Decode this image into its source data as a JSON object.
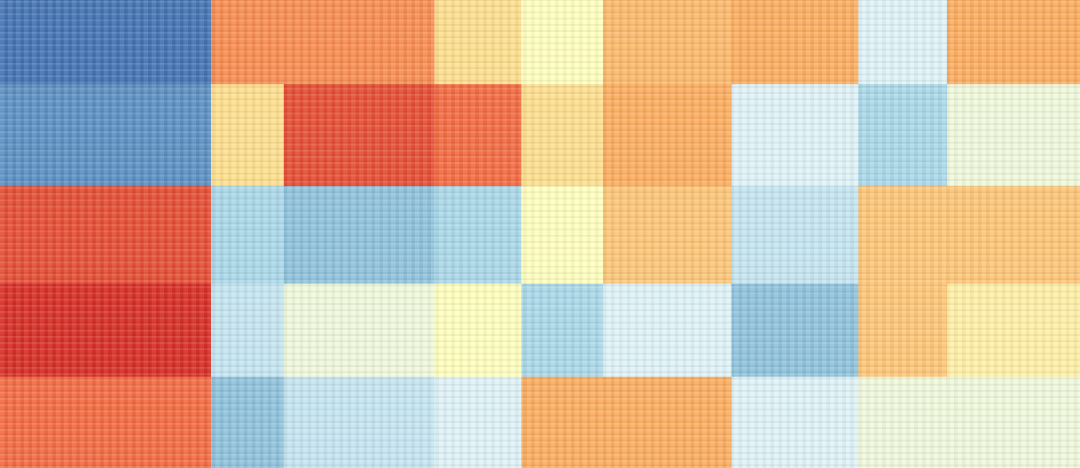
{
  "chart_data": {
    "type": "heatmap",
    "title": "",
    "xlabel": "",
    "ylabel": "",
    "value_range": [
      -1,
      1
    ],
    "colormap": [
      "#313695",
      "#4575b4",
      "#74add1",
      "#abd9e9",
      "#e0f3f8",
      "#ffffbf",
      "#fee090",
      "#fdae61",
      "#f46d43",
      "#d73027",
      "#a50026"
    ],
    "row_clusters": 5,
    "column_clusters": 9,
    "values": [
      [
        -0.8,
        0.5,
        0.5,
        0.2,
        0.0,
        0.35,
        0.4,
        -0.2,
        0.4
      ],
      [
        -0.7,
        0.2,
        0.7,
        0.6,
        0.2,
        0.4,
        -0.2,
        -0.4,
        -0.1
      ],
      [
        0.7,
        -0.4,
        -0.5,
        -0.4,
        0.0,
        0.3,
        -0.3,
        0.3,
        0.3
      ],
      [
        0.8,
        -0.3,
        -0.1,
        0.0,
        -0.4,
        -0.2,
        -0.5,
        0.3,
        0.1
      ],
      [
        0.6,
        -0.5,
        -0.3,
        -0.2,
        0.4,
        0.4,
        -0.2,
        -0.1,
        -0.1
      ]
    ]
  }
}
